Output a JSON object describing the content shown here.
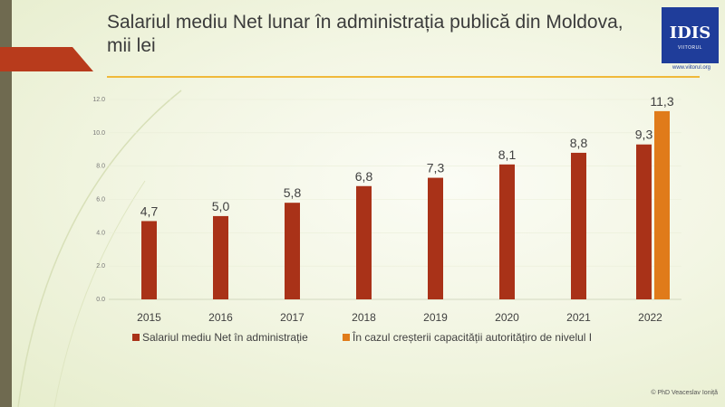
{
  "slide": {
    "title_line1": "Salariul mediu Net lunar în administrația publică din Moldova,",
    "title_line2": "mii lei",
    "logo_text": "IDIS",
    "logo_sub": "VIITORUL",
    "logo_url": "www.viitorul.org",
    "footer": "© PhD Veaceslav Ioniță",
    "colors": {
      "accent_red": "#b83b1c",
      "accent_gold": "#f0b93a",
      "brand_blue": "#1f3d9a"
    }
  },
  "chart_data": {
    "type": "bar",
    "categories": [
      "2015",
      "2016",
      "2017",
      "2018",
      "2019",
      "2020",
      "2021",
      "2022"
    ],
    "series": [
      {
        "name": "Salariul mediu Net în administrație",
        "color": "#a93218",
        "values": [
          4.7,
          5.0,
          5.8,
          6.8,
          7.3,
          8.1,
          8.8,
          9.3
        ],
        "labels": [
          "4,7",
          "5,0",
          "5,8",
          "6,8",
          "7,3",
          "8,1",
          "8,8",
          "9,3"
        ]
      },
      {
        "name": "În cazul creșterii capacității autoritățiro de nivelul I",
        "color": "#e07b1a",
        "values": [
          null,
          null,
          null,
          null,
          null,
          null,
          null,
          11.3
        ],
        "labels": [
          null,
          null,
          null,
          null,
          null,
          null,
          null,
          "11,3"
        ]
      }
    ],
    "yticks": [
      "0.0",
      "2.0",
      "4.0",
      "6.0",
      "8.0",
      "10.0",
      "12.0"
    ],
    "ylim": [
      0,
      12
    ],
    "grid": true,
    "legend_position": "bottom"
  }
}
